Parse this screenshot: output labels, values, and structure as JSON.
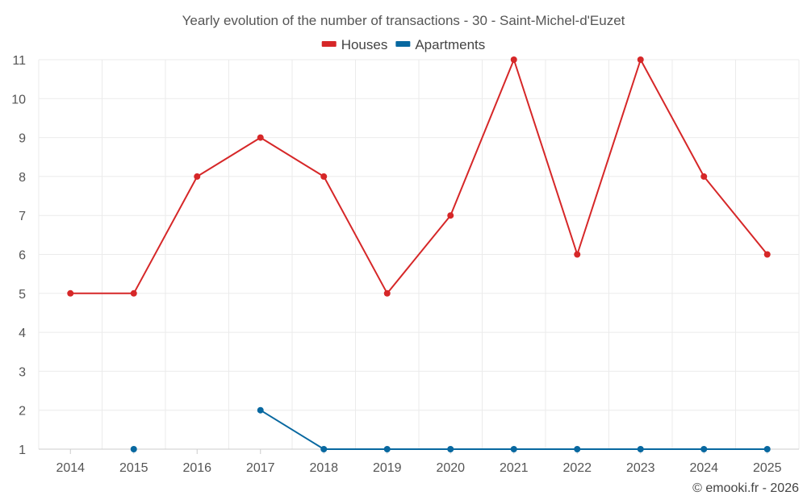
{
  "chart_data": {
    "type": "line",
    "title": "Yearly evolution of the number of transactions - 30 - Saint-Michel-d'Euzet",
    "x": [
      "2014",
      "2015",
      "2016",
      "2017",
      "2018",
      "2019",
      "2020",
      "2021",
      "2022",
      "2023",
      "2024",
      "2025"
    ],
    "series": [
      {
        "name": "Houses",
        "color": "#d62728",
        "values": [
          5,
          5,
          8,
          9,
          8,
          5,
          7,
          11,
          6,
          11,
          8,
          6
        ]
      },
      {
        "name": "Apartments",
        "color": "#0868a0",
        "values": [
          null,
          1,
          null,
          2,
          1,
          1,
          1,
          1,
          1,
          1,
          1,
          1
        ]
      }
    ],
    "ylim": [
      1,
      11
    ],
    "yticks": [
      "1",
      "2",
      "3",
      "4",
      "5",
      "6",
      "7",
      "8",
      "9",
      "10",
      "11"
    ],
    "xlabel": "",
    "ylabel": "",
    "grid": true,
    "legend": "top-center"
  },
  "credit": "© emooki.fr - 2026"
}
